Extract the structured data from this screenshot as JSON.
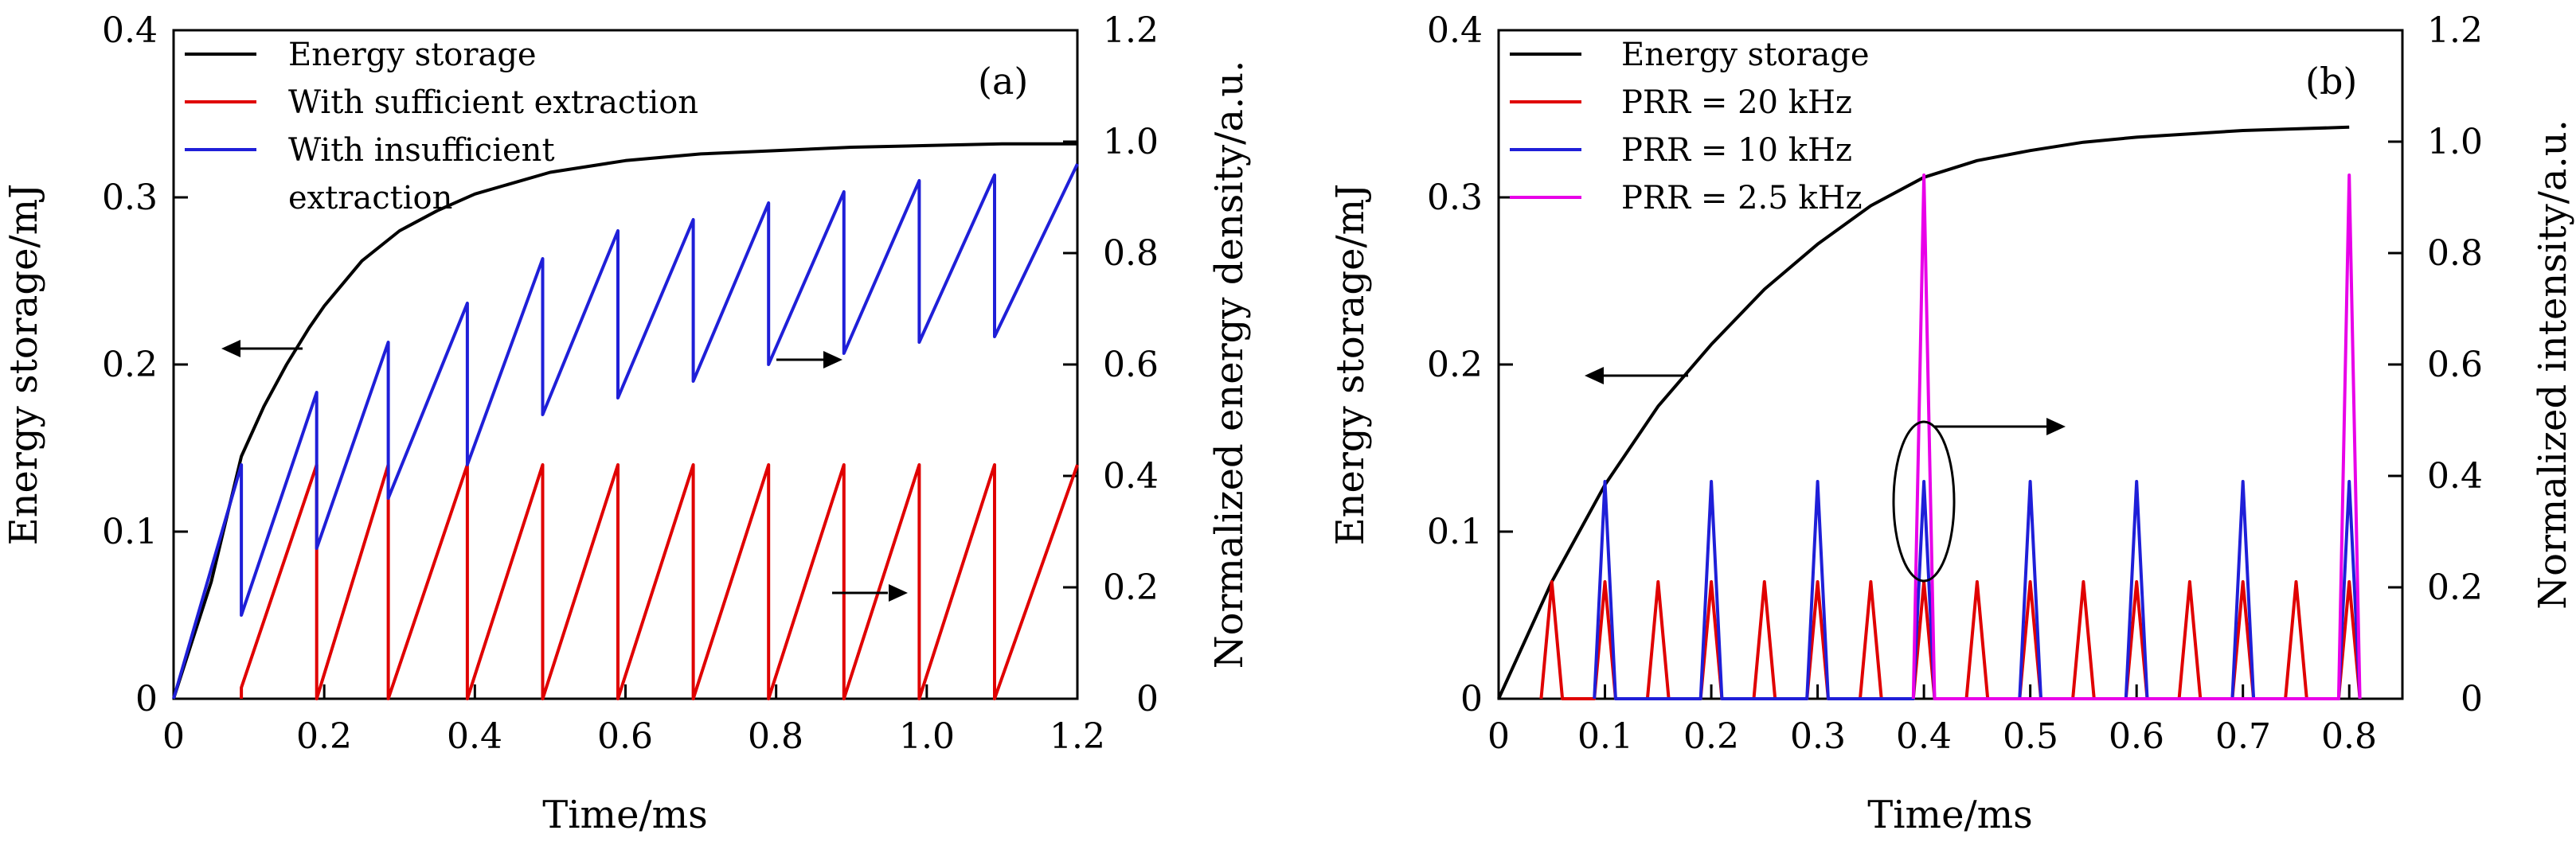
{
  "chart_data": [
    {
      "type": "line",
      "panel_label": "(a)",
      "xlabel": "Time/ms",
      "ylabel": "Energy storage/mJ",
      "y2label": "Normalized energy density/a.u.",
      "xlim": [
        0,
        1.2
      ],
      "ylim": [
        0,
        0.4
      ],
      "y2lim": [
        0,
        1.2
      ],
      "xticks": [
        0,
        0.2,
        0.4,
        0.6,
        0.8,
        1.0,
        1.2
      ],
      "xtick_labels": [
        "0",
        "0.2",
        "0.4",
        "0.6",
        "0.8",
        "1.0",
        "1.2"
      ],
      "yticks": [
        0,
        0.1,
        0.2,
        0.3,
        0.4
      ],
      "ytick_labels": [
        "0",
        "0.1",
        "0.2",
        "0.3",
        "0.4"
      ],
      "y2ticks": [
        0,
        0.2,
        0.4,
        0.6,
        0.8,
        1.0,
        1.2
      ],
      "y2tick_labels": [
        "0",
        "0.2",
        "0.4",
        "0.6",
        "0.8",
        "1.0",
        "1.2"
      ],
      "grid": false,
      "legend": "top-left",
      "series": [
        {
          "name": "Energy storage",
          "color": "#000000",
          "axis": "left",
          "x": [
            0,
            0.05,
            0.09,
            0.12,
            0.15,
            0.18,
            0.2,
            0.25,
            0.3,
            0.35,
            0.4,
            0.5,
            0.6,
            0.7,
            0.8,
            0.9,
            1.0,
            1.1,
            1.2
          ],
          "y": [
            0,
            0.07,
            0.145,
            0.175,
            0.2,
            0.222,
            0.235,
            0.262,
            0.28,
            0.292,
            0.302,
            0.315,
            0.322,
            0.326,
            0.328,
            0.33,
            0.331,
            0.332,
            0.332
          ]
        },
        {
          "name": "With sufficient extraction",
          "color": "#e00000",
          "axis": "right",
          "x": [
            0.09,
            0.09,
            0.19,
            0.19,
            0.285,
            0.285,
            0.39,
            0.39,
            0.49,
            0.49,
            0.59,
            0.59,
            0.69,
            0.69,
            0.79,
            0.79,
            0.89,
            0.89,
            0.99,
            0.99,
            1.09,
            1.09,
            1.2
          ],
          "y": [
            0,
            0.02,
            0.42,
            0,
            0.42,
            0,
            0.42,
            0,
            0.42,
            0,
            0.42,
            0,
            0.42,
            0,
            0.42,
            0,
            0.42,
            0,
            0.42,
            0,
            0.42,
            0,
            0.42
          ]
        },
        {
          "name": "With insufficient extraction",
          "color": "#1f1fd8",
          "axis": "right",
          "x": [
            0,
            0.09,
            0.09,
            0.19,
            0.19,
            0.285,
            0.285,
            0.39,
            0.39,
            0.49,
            0.49,
            0.59,
            0.59,
            0.69,
            0.69,
            0.79,
            0.79,
            0.89,
            0.89,
            0.99,
            0.99,
            1.09,
            1.09,
            1.2
          ],
          "y": [
            0,
            0.42,
            0.15,
            0.55,
            0.27,
            0.64,
            0.36,
            0.71,
            0.42,
            0.79,
            0.51,
            0.84,
            0.54,
            0.86,
            0.57,
            0.89,
            0.6,
            0.91,
            0.62,
            0.93,
            0.64,
            0.94,
            0.65,
            0.96
          ]
        }
      ],
      "legend_entries": [
        "Energy storage",
        "With sufficient extraction",
        "With insufficient",
        "extraction"
      ]
    },
    {
      "type": "line",
      "panel_label": "(b)",
      "xlabel": "Time/ms",
      "ylabel": "Energy storage/mJ",
      "y2label": "Normalized intensity/a.u.",
      "xlim": [
        0,
        0.85
      ],
      "ylim": [
        0,
        0.4
      ],
      "y2lim": [
        0,
        1.2
      ],
      "xticks": [
        0,
        0.1,
        0.2,
        0.3,
        0.4,
        0.5,
        0.6,
        0.7,
        0.8
      ],
      "xtick_labels": [
        "0",
        "0.1",
        "0.2",
        "0.3",
        "0.4",
        "0.5",
        "0.6",
        "0.7",
        "0.8"
      ],
      "yticks": [
        0,
        0.1,
        0.2,
        0.3,
        0.4
      ],
      "ytick_labels": [
        "0",
        "0.1",
        "0.2",
        "0.3",
        "0.4"
      ],
      "y2ticks": [
        0,
        0.2,
        0.4,
        0.6,
        0.8,
        1.0,
        1.2
      ],
      "y2tick_labels": [
        "0",
        "0.2",
        "0.4",
        "0.6",
        "0.8",
        "1.0",
        "1.2"
      ],
      "grid": false,
      "legend": "top-left",
      "series": [
        {
          "name": "Energy storage",
          "color": "#000000",
          "axis": "left",
          "x": [
            0,
            0.05,
            0.1,
            0.15,
            0.2,
            0.25,
            0.3,
            0.35,
            0.4,
            0.45,
            0.5,
            0.55,
            0.6,
            0.65,
            0.7,
            0.75,
            0.8
          ],
          "y": [
            0,
            0.07,
            0.128,
            0.175,
            0.212,
            0.245,
            0.272,
            0.295,
            0.312,
            0.322,
            0.328,
            0.333,
            0.336,
            0.338,
            0.34,
            0.341,
            0.342
          ]
        },
        {
          "name": "PRR = 20 kHz",
          "color": "#e00000",
          "axis": "right",
          "x": [
            0.04,
            0.05,
            0.06,
            0.09,
            0.1,
            0.11,
            0.14,
            0.15,
            0.16,
            0.19,
            0.2,
            0.21,
            0.24,
            0.25,
            0.26,
            0.29,
            0.3,
            0.31,
            0.34,
            0.35,
            0.36,
            0.39,
            0.4,
            0.41,
            0.44,
            0.45,
            0.46,
            0.49,
            0.5,
            0.51,
            0.54,
            0.55,
            0.56,
            0.59,
            0.6,
            0.61,
            0.64,
            0.65,
            0.66,
            0.69,
            0.7,
            0.71,
            0.74,
            0.75,
            0.76,
            0.79,
            0.8,
            0.81
          ],
          "y": [
            0,
            0.21,
            0,
            0,
            0.21,
            0,
            0,
            0.21,
            0,
            0,
            0.21,
            0,
            0,
            0.21,
            0,
            0,
            0.21,
            0,
            0,
            0.21,
            0,
            0,
            0.21,
            0,
            0,
            0.21,
            0,
            0,
            0.21,
            0,
            0,
            0.21,
            0,
            0,
            0.21,
            0,
            0,
            0.21,
            0,
            0,
            0.21,
            0,
            0,
            0.21,
            0,
            0,
            0.21,
            0
          ]
        },
        {
          "name": "PRR = 10 kHz",
          "color": "#1f1fd8",
          "axis": "right",
          "x": [
            0.09,
            0.1,
            0.11,
            0.19,
            0.2,
            0.21,
            0.29,
            0.3,
            0.31,
            0.39,
            0.4,
            0.41,
            0.49,
            0.5,
            0.51,
            0.59,
            0.6,
            0.61,
            0.69,
            0.7,
            0.71,
            0.79,
            0.8,
            0.81
          ],
          "y": [
            0,
            0.39,
            0,
            0,
            0.39,
            0,
            0,
            0.39,
            0,
            0,
            0.39,
            0,
            0,
            0.39,
            0,
            0,
            0.39,
            0,
            0,
            0.39,
            0,
            0,
            0.39,
            0
          ]
        },
        {
          "name": "PRR = 2.5 kHz",
          "color": "#e800e8",
          "axis": "right",
          "x": [
            0.39,
            0.4,
            0.41,
            0.79,
            0.8,
            0.81
          ],
          "y": [
            0,
            0.94,
            0,
            0,
            0.94,
            0
          ]
        }
      ],
      "legend_entries": [
        "Energy storage",
        "PRR = 20 kHz",
        "PRR = 10 kHz",
        "PRR = 2.5 kHz"
      ]
    }
  ]
}
